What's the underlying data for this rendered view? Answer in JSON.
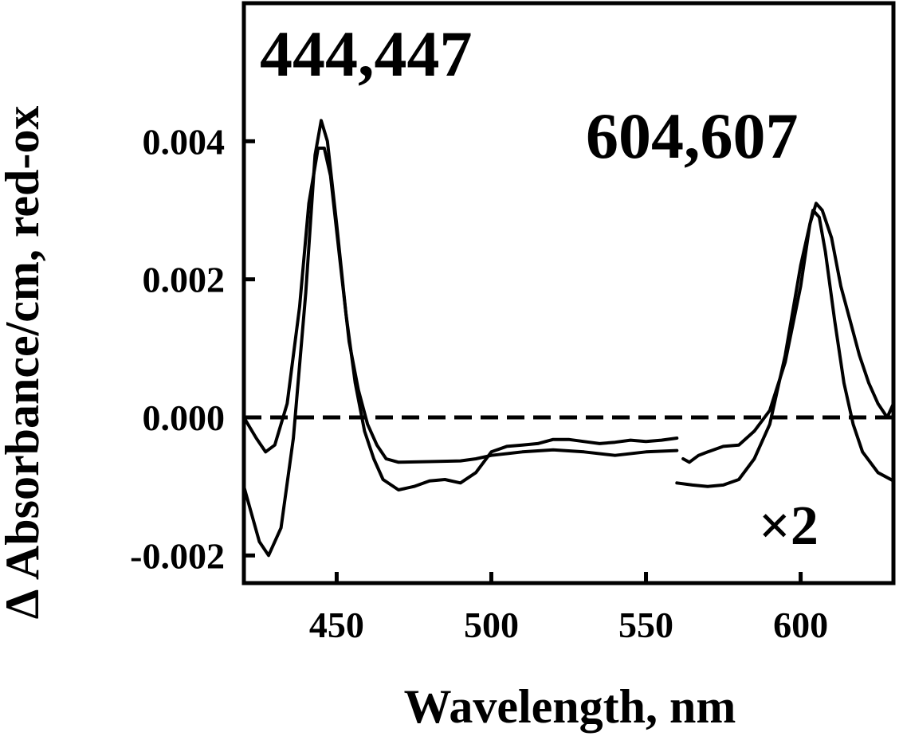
{
  "chart_data": {
    "type": "line",
    "title": "",
    "xlabel": "Wavelength, nm",
    "ylabel": "Δ Absorbance/cm, red-ox",
    "xlim": [
      420,
      630
    ],
    "ylim": [
      -0.0024,
      0.006
    ],
    "x_ticks": [
      450,
      500,
      550,
      600
    ],
    "x_tick_labels": [
      "450",
      "500",
      "550",
      "600"
    ],
    "y_ticks": [
      -0.002,
      0.0,
      0.002,
      0.004
    ],
    "y_tick_labels": [
      "-0.002",
      "0.000",
      "0.002",
      "0.004"
    ],
    "grid": false,
    "legend": "none",
    "reference_line": {
      "y": 0.0,
      "style": "dashed"
    },
    "annotations": [
      {
        "text": "444,447",
        "role": "peak-label-soret"
      },
      {
        "text": "604,607",
        "role": "peak-label-alpha"
      },
      {
        "text": "×2",
        "role": "scale-factor"
      }
    ],
    "series": [
      {
        "segments": [
          {
            "x": [
              420,
              425,
              428,
              432,
              436,
              440,
              443,
              445,
              447,
              450,
              453,
              456,
              459,
              462,
              465,
              470,
              475,
              480,
              485,
              490,
              495,
              500,
              505,
              510,
              515,
              520,
              525,
              530,
              535,
              540,
              545,
              550,
              555,
              560
            ],
            "y": [
              -0.001,
              -0.0018,
              -0.002,
              -0.0016,
              -0.0003,
              0.0018,
              0.0038,
              0.0043,
              0.004,
              0.0028,
              0.0015,
              0.0005,
              -0.0002,
              -0.0006,
              -0.0009,
              -0.00105,
              -0.001,
              -0.00092,
              -0.0009,
              -0.00095,
              -0.0008,
              -0.0005,
              -0.00042,
              -0.0004,
              -0.00038,
              -0.00032,
              -0.00032,
              -0.00035,
              -0.00038,
              -0.00036,
              -0.00033,
              -0.00035,
              -0.00033,
              -0.0003
            ]
          },
          {
            "x": [
              560,
              565,
              570,
              575,
              580,
              585,
              590,
              595,
              600,
              604,
              606,
              608,
              611,
              614,
              617,
              620,
              625,
              630
            ],
            "y": [
              -0.00095,
              -0.00098,
              -0.001,
              -0.00098,
              -0.0009,
              -0.0006,
              -0.0001,
              0.0009,
              0.0022,
              0.003,
              0.0029,
              0.0024,
              0.0014,
              0.0005,
              -0.0001,
              -0.0005,
              -0.0008,
              -0.00092
            ]
          }
        ]
      },
      {
        "segments": [
          {
            "x": [
              420,
              424,
              427,
              430,
              434,
              438,
              441,
              444,
              446,
              448,
              451,
              454,
              457,
              460,
              463,
              466,
              470,
              480,
              490,
              495,
              500,
              510,
              520,
              530,
              540,
              550,
              560
            ],
            "y": [
              0.0,
              -0.0003,
              -0.0005,
              -0.0004,
              0.0002,
              0.0016,
              0.0031,
              0.0039,
              0.0039,
              0.0035,
              0.0023,
              0.0011,
              0.0004,
              -0.0001,
              -0.0004,
              -0.0006,
              -0.00065,
              -0.00064,
              -0.00063,
              -0.0006,
              -0.00055,
              -0.0005,
              -0.00047,
              -0.0005,
              -0.00055,
              -0.0005,
              -0.00048
            ]
          },
          {
            "x": [
              562,
              564,
              567,
              570,
              575,
              580,
              585,
              590,
              595,
              600,
              603,
              605,
              607,
              610,
              613,
              616,
              619,
              622,
              625,
              628,
              630
            ],
            "y": [
              -0.0006,
              -0.00065,
              -0.00055,
              -0.0005,
              -0.00042,
              -0.0004,
              -0.0002,
              0.0001,
              0.0008,
              0.0019,
              0.0028,
              0.0031,
              0.003,
              0.0026,
              0.0019,
              0.0014,
              0.0009,
              0.0005,
              0.0002,
              0.0,
              0.0002
            ]
          }
        ]
      }
    ]
  }
}
